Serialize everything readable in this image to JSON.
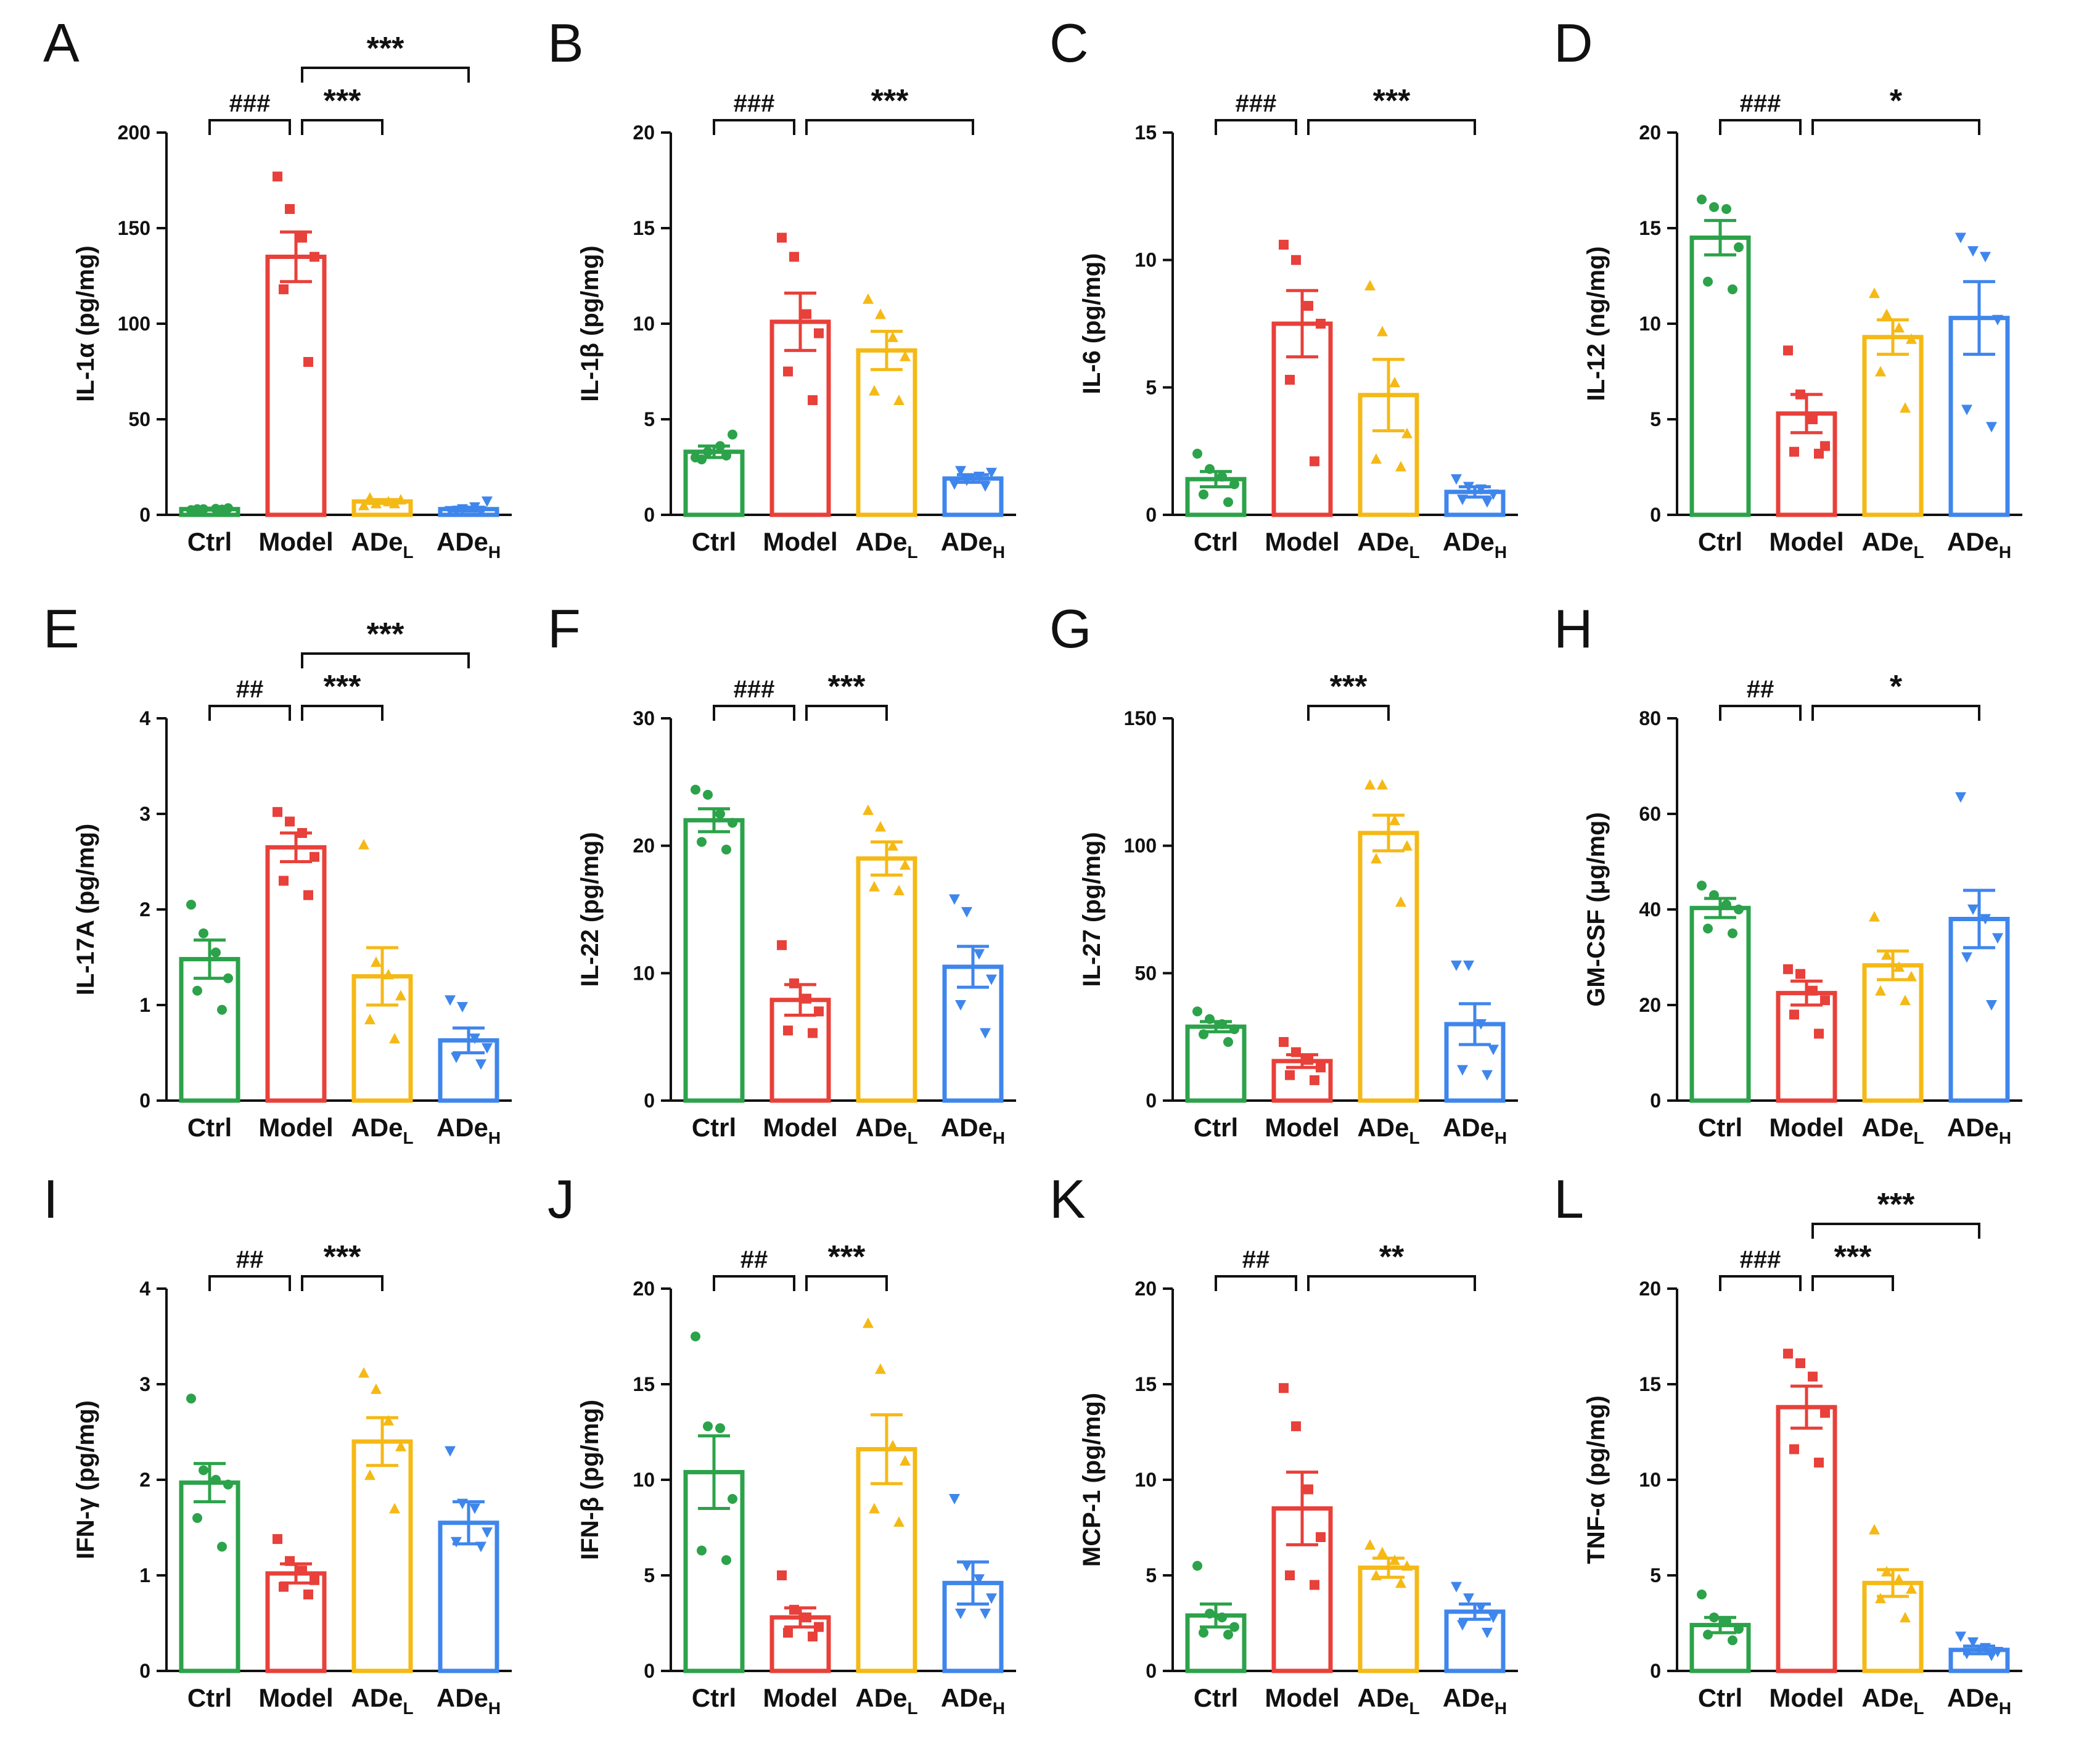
{
  "figure": {
    "group_colors": {
      "Ctrl": "#2ca24a",
      "Model": "#e8403a",
      "ADeL": "#f5b916",
      "ADeH": "#3f86ec"
    },
    "group_markers": {
      "Ctrl": "circle",
      "Model": "square",
      "ADeL": "triangle-up",
      "ADeH": "triangle-down"
    }
  },
  "chart_data": [
    {
      "panel": "A",
      "type": "bar",
      "ylabel": "IL-1α (pg/mg)",
      "ylim": [
        0,
        200
      ],
      "yticks": [
        0,
        50,
        100,
        150,
        200
      ],
      "categories": [
        {
          "main": "Ctrl",
          "sub": ""
        },
        {
          "main": "Model",
          "sub": ""
        },
        {
          "main": "ADe",
          "sub": "L"
        },
        {
          "main": "ADe",
          "sub": "H"
        }
      ],
      "means": [
        3,
        135,
        7,
        3
      ],
      "sem": [
        0.5,
        13,
        1,
        1
      ],
      "points": [
        [
          2.5,
          3,
          3.2,
          3.5,
          3,
          2.8
        ],
        [
          177,
          160,
          145,
          135,
          118,
          80
        ],
        [
          5,
          6,
          7,
          8,
          9,
          6
        ],
        [
          2,
          3,
          4,
          7,
          2,
          2
        ]
      ],
      "annotations": [
        {
          "from": 0,
          "to": 1,
          "label": "###",
          "level": 1
        },
        {
          "from": 1,
          "to": 2,
          "label": "***",
          "level": 1
        },
        {
          "from": 1,
          "to": 3,
          "label": "***",
          "level": 2
        }
      ]
    },
    {
      "panel": "B",
      "type": "bar",
      "ylabel": "IL-1β (pg/mg)",
      "ylim": [
        0,
        20
      ],
      "yticks": [
        0,
        5,
        10,
        15,
        20
      ],
      "categories": [
        {
          "main": "Ctrl",
          "sub": ""
        },
        {
          "main": "Model",
          "sub": ""
        },
        {
          "main": "ADe",
          "sub": "L"
        },
        {
          "main": "ADe",
          "sub": "H"
        }
      ],
      "means": [
        3.3,
        10.1,
        8.6,
        1.9
      ],
      "sem": [
        0.3,
        1.5,
        1.0,
        0.2
      ],
      "points": [
        [
          3.0,
          3.3,
          3.6,
          4.2,
          2.9,
          3.1
        ],
        [
          14.5,
          13.5,
          10.5,
          9.5,
          7.5,
          6.0
        ],
        [
          11.3,
          10.5,
          9.3,
          8.3,
          6.5,
          6.0
        ],
        [
          1.6,
          1.8,
          2.0,
          2.2,
          2.3,
          1.5
        ]
      ],
      "annotations": [
        {
          "from": 0,
          "to": 1,
          "label": "###",
          "level": 1
        },
        {
          "from": 1,
          "to": 3,
          "label": "***",
          "level": 1
        }
      ]
    },
    {
      "panel": "C",
      "type": "bar",
      "ylabel": "IL-6 (pg/mg)",
      "ylim": [
        0,
        15
      ],
      "yticks": [
        0,
        5,
        10,
        15
      ],
      "categories": [
        {
          "main": "Ctrl",
          "sub": ""
        },
        {
          "main": "Model",
          "sub": ""
        },
        {
          "main": "ADe",
          "sub": "L"
        },
        {
          "main": "ADe",
          "sub": "H"
        }
      ],
      "means": [
        1.4,
        7.5,
        4.7,
        0.9
      ],
      "sem": [
        0.3,
        1.3,
        1.4,
        0.2
      ],
      "points": [
        [
          2.4,
          1.8,
          1.5,
          1.2,
          0.8,
          0.5
        ],
        [
          10.6,
          10.0,
          8.2,
          7.5,
          5.3,
          2.1
        ],
        [
          9.0,
          7.2,
          5.2,
          3.2,
          2.2,
          1.9
        ],
        [
          1.4,
          1.1,
          1.0,
          0.8,
          0.6,
          0.5
        ]
      ],
      "annotations": [
        {
          "from": 0,
          "to": 1,
          "label": "###",
          "level": 1
        },
        {
          "from": 1,
          "to": 3,
          "label": "***",
          "level": 1
        }
      ]
    },
    {
      "panel": "D",
      "type": "bar",
      "ylabel": "IL-12 (ng/mg)",
      "ylim": [
        0,
        20
      ],
      "yticks": [
        0,
        5,
        10,
        15,
        20
      ],
      "categories": [
        {
          "main": "Ctrl",
          "sub": ""
        },
        {
          "main": "Model",
          "sub": ""
        },
        {
          "main": "ADe",
          "sub": "L"
        },
        {
          "main": "ADe",
          "sub": "H"
        }
      ],
      "means": [
        14.5,
        5.3,
        9.3,
        10.3
      ],
      "sem": [
        0.9,
        1.0,
        0.9,
        1.9
      ],
      "points": [
        [
          16.5,
          16.1,
          16.0,
          14.0,
          12.2,
          11.8
        ],
        [
          8.6,
          6.3,
          5.0,
          3.6,
          3.3,
          3.2
        ],
        [
          11.6,
          10.5,
          9.8,
          9.2,
          7.5,
          5.6
        ],
        [
          14.5,
          13.8,
          13.5,
          10.2,
          5.5,
          4.6
        ]
      ],
      "annotations": [
        {
          "from": 0,
          "to": 1,
          "label": "###",
          "level": 1
        },
        {
          "from": 1,
          "to": 3,
          "label": "*",
          "level": 1
        }
      ]
    },
    {
      "panel": "E",
      "type": "bar",
      "ylabel": "IL-17A (pg/mg)",
      "ylim": [
        0,
        4
      ],
      "yticks": [
        0,
        1,
        2,
        3,
        4
      ],
      "categories": [
        {
          "main": "Ctrl",
          "sub": ""
        },
        {
          "main": "Model",
          "sub": ""
        },
        {
          "main": "ADe",
          "sub": "L"
        },
        {
          "main": "ADe",
          "sub": "H"
        }
      ],
      "means": [
        1.48,
        2.65,
        1.3,
        0.63
      ],
      "sem": [
        0.2,
        0.15,
        0.3,
        0.13
      ],
      "points": [
        [
          2.05,
          1.75,
          1.55,
          1.28,
          1.15,
          0.95
        ],
        [
          3.02,
          2.92,
          2.8,
          2.55,
          2.3,
          2.15
        ],
        [
          2.68,
          1.45,
          1.32,
          1.1,
          0.85,
          0.65
        ],
        [
          1.05,
          0.98,
          0.65,
          0.55,
          0.45,
          0.38
        ]
      ],
      "annotations": [
        {
          "from": 0,
          "to": 1,
          "label": "##",
          "level": 1
        },
        {
          "from": 1,
          "to": 2,
          "label": "***",
          "level": 1
        },
        {
          "from": 1,
          "to": 3,
          "label": "***",
          "level": 2
        }
      ]
    },
    {
      "panel": "F",
      "type": "bar",
      "ylabel": "IL-22 (pg/mg)",
      "ylim": [
        0,
        30
      ],
      "yticks": [
        0,
        10,
        20,
        30
      ],
      "categories": [
        {
          "main": "Ctrl",
          "sub": ""
        },
        {
          "main": "Model",
          "sub": ""
        },
        {
          "main": "ADe",
          "sub": "L"
        },
        {
          "main": "ADe",
          "sub": "H"
        }
      ],
      "means": [
        22.0,
        7.9,
        19.0,
        10.5
      ],
      "sem": [
        0.9,
        1.2,
        1.3,
        1.6
      ],
      "points": [
        [
          24.4,
          24.0,
          22.5,
          21.8,
          20.3,
          19.7
        ],
        [
          12.2,
          9.2,
          8.0,
          7.0,
          5.5,
          5.3
        ],
        [
          22.8,
          21.5,
          20.0,
          18.5,
          16.8,
          16.5
        ],
        [
          15.8,
          14.8,
          11.5,
          9.5,
          7.5,
          5.3
        ]
      ],
      "annotations": [
        {
          "from": 0,
          "to": 1,
          "label": "###",
          "level": 1
        },
        {
          "from": 1,
          "to": 2,
          "label": "***",
          "level": 1
        }
      ]
    },
    {
      "panel": "G",
      "type": "bar",
      "ylabel": "IL-27 (pg/mg)",
      "ylim": [
        0,
        150
      ],
      "yticks": [
        0,
        50,
        100,
        150
      ],
      "categories": [
        {
          "main": "Ctrl",
          "sub": ""
        },
        {
          "main": "Model",
          "sub": ""
        },
        {
          "main": "ADe",
          "sub": "L"
        },
        {
          "main": "ADe",
          "sub": "H"
        }
      ],
      "means": [
        29,
        15.5,
        105,
        30
      ],
      "sem": [
        2,
        2.5,
        7,
        8
      ],
      "points": [
        [
          35,
          32,
          30,
          28,
          26,
          23
        ],
        [
          23,
          19,
          16,
          13,
          10,
          8
        ],
        [
          124,
          124,
          110,
          100,
          95,
          78
        ],
        [
          53,
          53,
          30,
          20,
          12,
          10
        ]
      ],
      "annotations": [
        {
          "from": 1,
          "to": 2,
          "label": "***",
          "level": 1
        }
      ]
    },
    {
      "panel": "H",
      "type": "bar",
      "ylabel": "GM-CSF (μg/mg)",
      "ylim": [
        0,
        80
      ],
      "yticks": [
        0,
        20,
        40,
        60,
        80
      ],
      "categories": [
        {
          "main": "Ctrl",
          "sub": ""
        },
        {
          "main": "Model",
          "sub": ""
        },
        {
          "main": "ADe",
          "sub": "L"
        },
        {
          "main": "ADe",
          "sub": "H"
        }
      ],
      "means": [
        40.3,
        22.5,
        28.3,
        38.0
      ],
      "sem": [
        2,
        2.5,
        3,
        6
      ],
      "points": [
        [
          45,
          43,
          41,
          40,
          36,
          35
        ],
        [
          27.5,
          26.5,
          23,
          21,
          18,
          14
        ],
        [
          38.5,
          30.5,
          28,
          26,
          23,
          21
        ],
        [
          63.5,
          40,
          38,
          34,
          30,
          20
        ]
      ],
      "annotations": [
        {
          "from": 0,
          "to": 1,
          "label": "##",
          "level": 1
        },
        {
          "from": 1,
          "to": 3,
          "label": "*",
          "level": 1
        }
      ]
    },
    {
      "panel": "I",
      "type": "bar",
      "ylabel": "IFN-γ (pg/mg)",
      "ylim": [
        0,
        4
      ],
      "yticks": [
        0,
        1,
        2,
        3,
        4
      ],
      "categories": [
        {
          "main": "Ctrl",
          "sub": ""
        },
        {
          "main": "Model",
          "sub": ""
        },
        {
          "main": "ADe",
          "sub": "L"
        },
        {
          "main": "ADe",
          "sub": "H"
        }
      ],
      "means": [
        1.97,
        1.02,
        2.4,
        1.55
      ],
      "sem": [
        0.2,
        0.1,
        0.25,
        0.22
      ],
      "points": [
        [
          2.85,
          2.1,
          2.0,
          1.95,
          1.6,
          1.3
        ],
        [
          1.38,
          1.15,
          1.05,
          0.95,
          0.88,
          0.8
        ],
        [
          3.12,
          2.95,
          2.62,
          2.35,
          2.05,
          1.7
        ],
        [
          2.3,
          1.75,
          1.7,
          1.45,
          1.35,
          1.3
        ]
      ],
      "annotations": [
        {
          "from": 0,
          "to": 1,
          "label": "##",
          "level": 1
        },
        {
          "from": 1,
          "to": 2,
          "label": "***",
          "level": 1
        }
      ]
    },
    {
      "panel": "J",
      "type": "bar",
      "ylabel": "IFN-β (pg/mg)",
      "ylim": [
        0,
        20
      ],
      "yticks": [
        0,
        5,
        10,
        15,
        20
      ],
      "categories": [
        {
          "main": "Ctrl",
          "sub": ""
        },
        {
          "main": "Model",
          "sub": ""
        },
        {
          "main": "ADe",
          "sub": "L"
        },
        {
          "main": "ADe",
          "sub": "H"
        }
      ],
      "means": [
        10.4,
        2.8,
        11.6,
        4.6
      ],
      "sem": [
        1.9,
        0.5,
        1.8,
        1.1
      ],
      "points": [
        [
          17.5,
          12.8,
          12.7,
          9.0,
          6.3,
          5.8
        ],
        [
          5.0,
          3.2,
          2.8,
          2.3,
          2.0,
          1.8
        ],
        [
          18.2,
          15.8,
          11.8,
          11.0,
          8.5,
          7.8
        ],
        [
          9.0,
          5.5,
          4.8,
          3.8,
          3.0,
          3.0
        ]
      ],
      "annotations": [
        {
          "from": 0,
          "to": 1,
          "label": "##",
          "level": 1
        },
        {
          "from": 1,
          "to": 2,
          "label": "***",
          "level": 1
        }
      ]
    },
    {
      "panel": "K",
      "type": "bar",
      "ylabel": "MCP-1 (pg/mg)",
      "ylim": [
        0,
        20
      ],
      "yticks": [
        0,
        5,
        10,
        15,
        20
      ],
      "categories": [
        {
          "main": "Ctrl",
          "sub": ""
        },
        {
          "main": "Model",
          "sub": ""
        },
        {
          "main": "ADe",
          "sub": "L"
        },
        {
          "main": "ADe",
          "sub": "H"
        }
      ],
      "means": [
        2.9,
        8.5,
        5.4,
        3.1
      ],
      "sem": [
        0.6,
        1.9,
        0.5,
        0.4
      ],
      "points": [
        [
          5.5,
          3.0,
          2.8,
          2.3,
          2.0,
          1.9
        ],
        [
          14.8,
          12.8,
          9.5,
          7.0,
          5.0,
          4.5
        ],
        [
          6.6,
          6.2,
          5.8,
          5.5,
          5.0,
          4.6
        ],
        [
          4.4,
          3.8,
          3.3,
          2.8,
          2.4,
          2.0
        ]
      ],
      "annotations": [
        {
          "from": 0,
          "to": 1,
          "label": "##",
          "level": 1
        },
        {
          "from": 1,
          "to": 3,
          "label": "**",
          "level": 1
        }
      ]
    },
    {
      "panel": "L",
      "type": "bar",
      "ylabel": "TNF-α (pg/mg)",
      "ylim": [
        0,
        20
      ],
      "yticks": [
        0,
        5,
        10,
        15,
        20
      ],
      "categories": [
        {
          "main": "Ctrl",
          "sub": ""
        },
        {
          "main": "Model",
          "sub": ""
        },
        {
          "main": "ADe",
          "sub": "L"
        },
        {
          "main": "ADe",
          "sub": "H"
        }
      ],
      "means": [
        2.4,
        13.8,
        4.6,
        1.1
      ],
      "sem": [
        0.4,
        1.1,
        0.7,
        0.2
      ],
      "points": [
        [
          4.0,
          2.8,
          2.6,
          2.2,
          1.9,
          1.6
        ],
        [
          16.6,
          16.1,
          15.4,
          13.5,
          11.6,
          10.9
        ],
        [
          7.4,
          5.2,
          4.8,
          4.3,
          3.8,
          2.8
        ],
        [
          1.8,
          1.5,
          1.2,
          1.0,
          0.9,
          0.8
        ]
      ],
      "annotations": [
        {
          "from": 0,
          "to": 1,
          "label": "###",
          "level": 1
        },
        {
          "from": 1,
          "to": 2,
          "label": "***",
          "level": 1
        },
        {
          "from": 1,
          "to": 3,
          "label": "***",
          "level": 2
        }
      ]
    }
  ]
}
